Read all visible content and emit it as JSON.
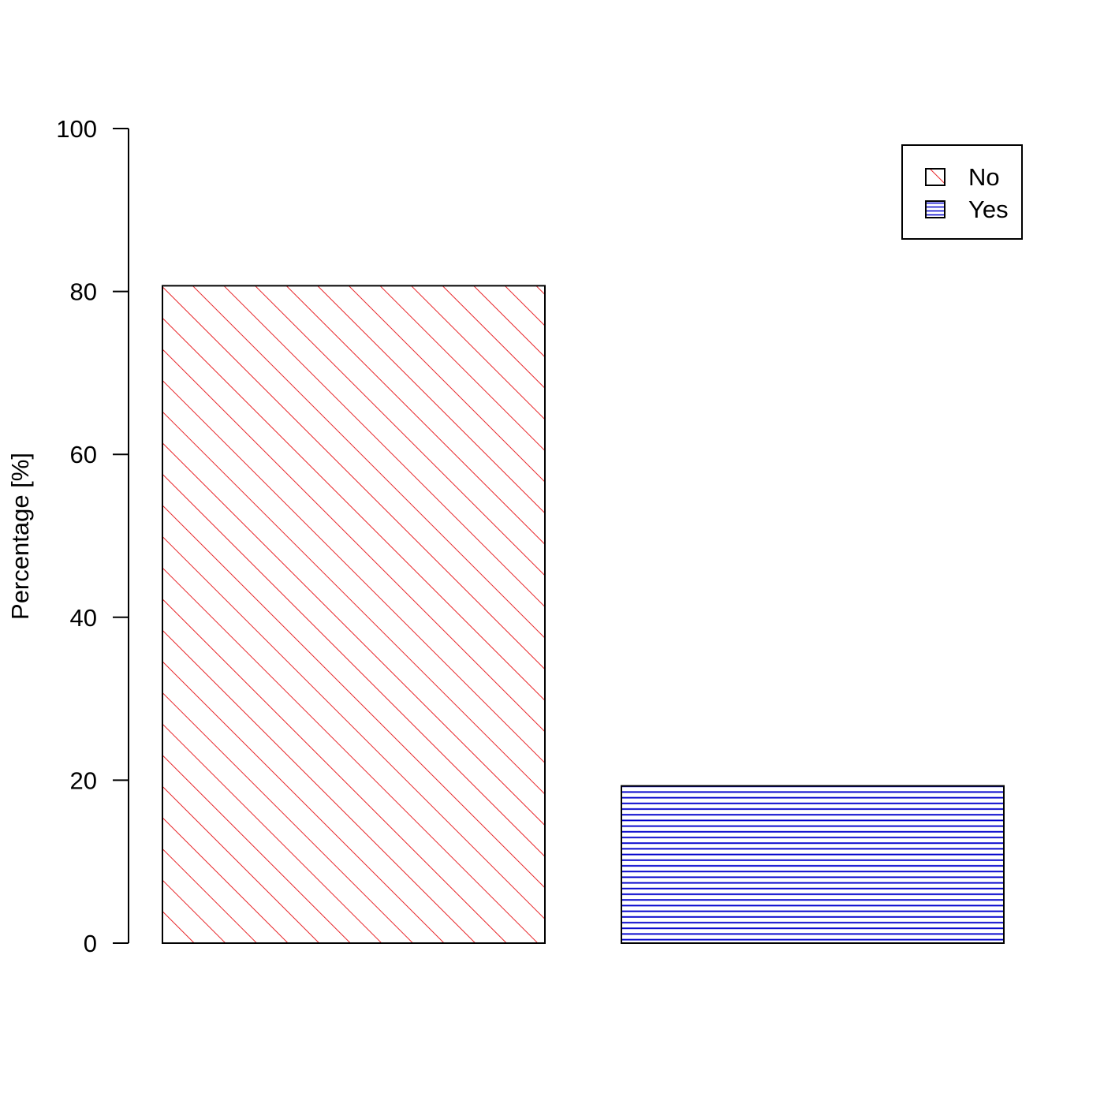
{
  "chart_data": {
    "type": "bar",
    "categories": [
      "No",
      "Yes"
    ],
    "values": [
      80.7,
      19.3
    ],
    "title": "",
    "xlabel": "",
    "ylabel": "Percentage [%]",
    "ylim": [
      0,
      100
    ],
    "yticks": [
      0,
      20,
      40,
      60,
      80,
      100
    ],
    "grid": false,
    "legend": {
      "position": "top-right",
      "entries": [
        {
          "label": "No",
          "color": "#e8262a",
          "pattern": "diagonal-hatch"
        },
        {
          "label": "Yes",
          "color": "#0000cc",
          "pattern": "horizontal-hatch"
        }
      ]
    },
    "bar_colors": [
      "#e8262a",
      "#0000cc"
    ]
  }
}
